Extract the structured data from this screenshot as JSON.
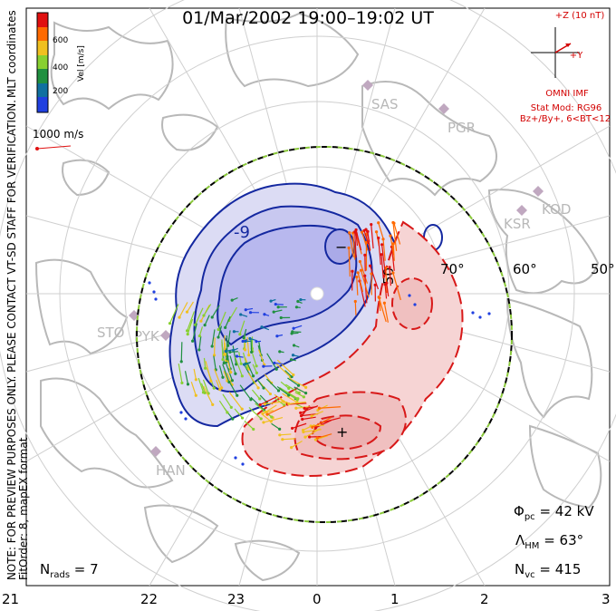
{
  "header": {
    "date_range": "01/Mar/2002 19:00–19:02 UT"
  },
  "left_notes": {
    "coords": "MLT coordinates",
    "preview": "NOTE: FOR PREVIEW PURPOSES ONLY. PLEASE CONTACT VT-SD STAFF FOR VERIFICATION.",
    "fitorder": "FitOrder: 8, mapEX format"
  },
  "colorbar": {
    "label": "Vel [m/s]",
    "ticks": [
      "600",
      "400",
      "200"
    ],
    "colors": [
      "#e01010",
      "#ff6a00",
      "#f0c020",
      "#88d030",
      "#209040",
      "#1070a0",
      "#2040e0"
    ]
  },
  "scale": {
    "label": "1000 m/s"
  },
  "imf": {
    "bz_label": "+Z (10 nT)",
    "by_label": "+Y",
    "source": "OMNI IMF",
    "model": "Stat Mod: RG96",
    "condition": "Bz+/By+, 6<BT<12"
  },
  "stats": {
    "phi_pc": "Φpc = 42 kV",
    "lambda_hm": "ΛHM = 63°",
    "n_vc": "Nvc = 415",
    "n_rads": "Nrads = 7"
  },
  "stats_parts": {
    "phi_sym": "Φ",
    "phi_sub": "pc",
    "phi_val": " = 42 kV",
    "lam_sym": "Λ",
    "lam_sub": "HM",
    "lam_val": " = 63°",
    "nvc_sym": "N",
    "nvc_sub": "vc",
    "nvc_val": " = 415",
    "nrads_sym": "N",
    "nrads_sub": "rads",
    "nrads_val": " = 7"
  },
  "latitudes": [
    "70°",
    "60°",
    "50°"
  ],
  "mlt_ticks": [
    "21",
    "22",
    "23",
    "0",
    "1",
    "2",
    "3"
  ],
  "stations": [
    "SAS",
    "PGR",
    "KOD",
    "KSR",
    "STO",
    "PYK",
    "HAN"
  ],
  "contour_labels": {
    "neg_value": "-9",
    "neg_center": "−",
    "pos_center": "+"
  },
  "colors": {
    "negative_fill": "#b8b8ee",
    "negative_line": "#1428a0",
    "positive_fill": "#f0c0c0",
    "positive_line": "#d81818",
    "boundary_dash": "#8ac83a"
  }
}
